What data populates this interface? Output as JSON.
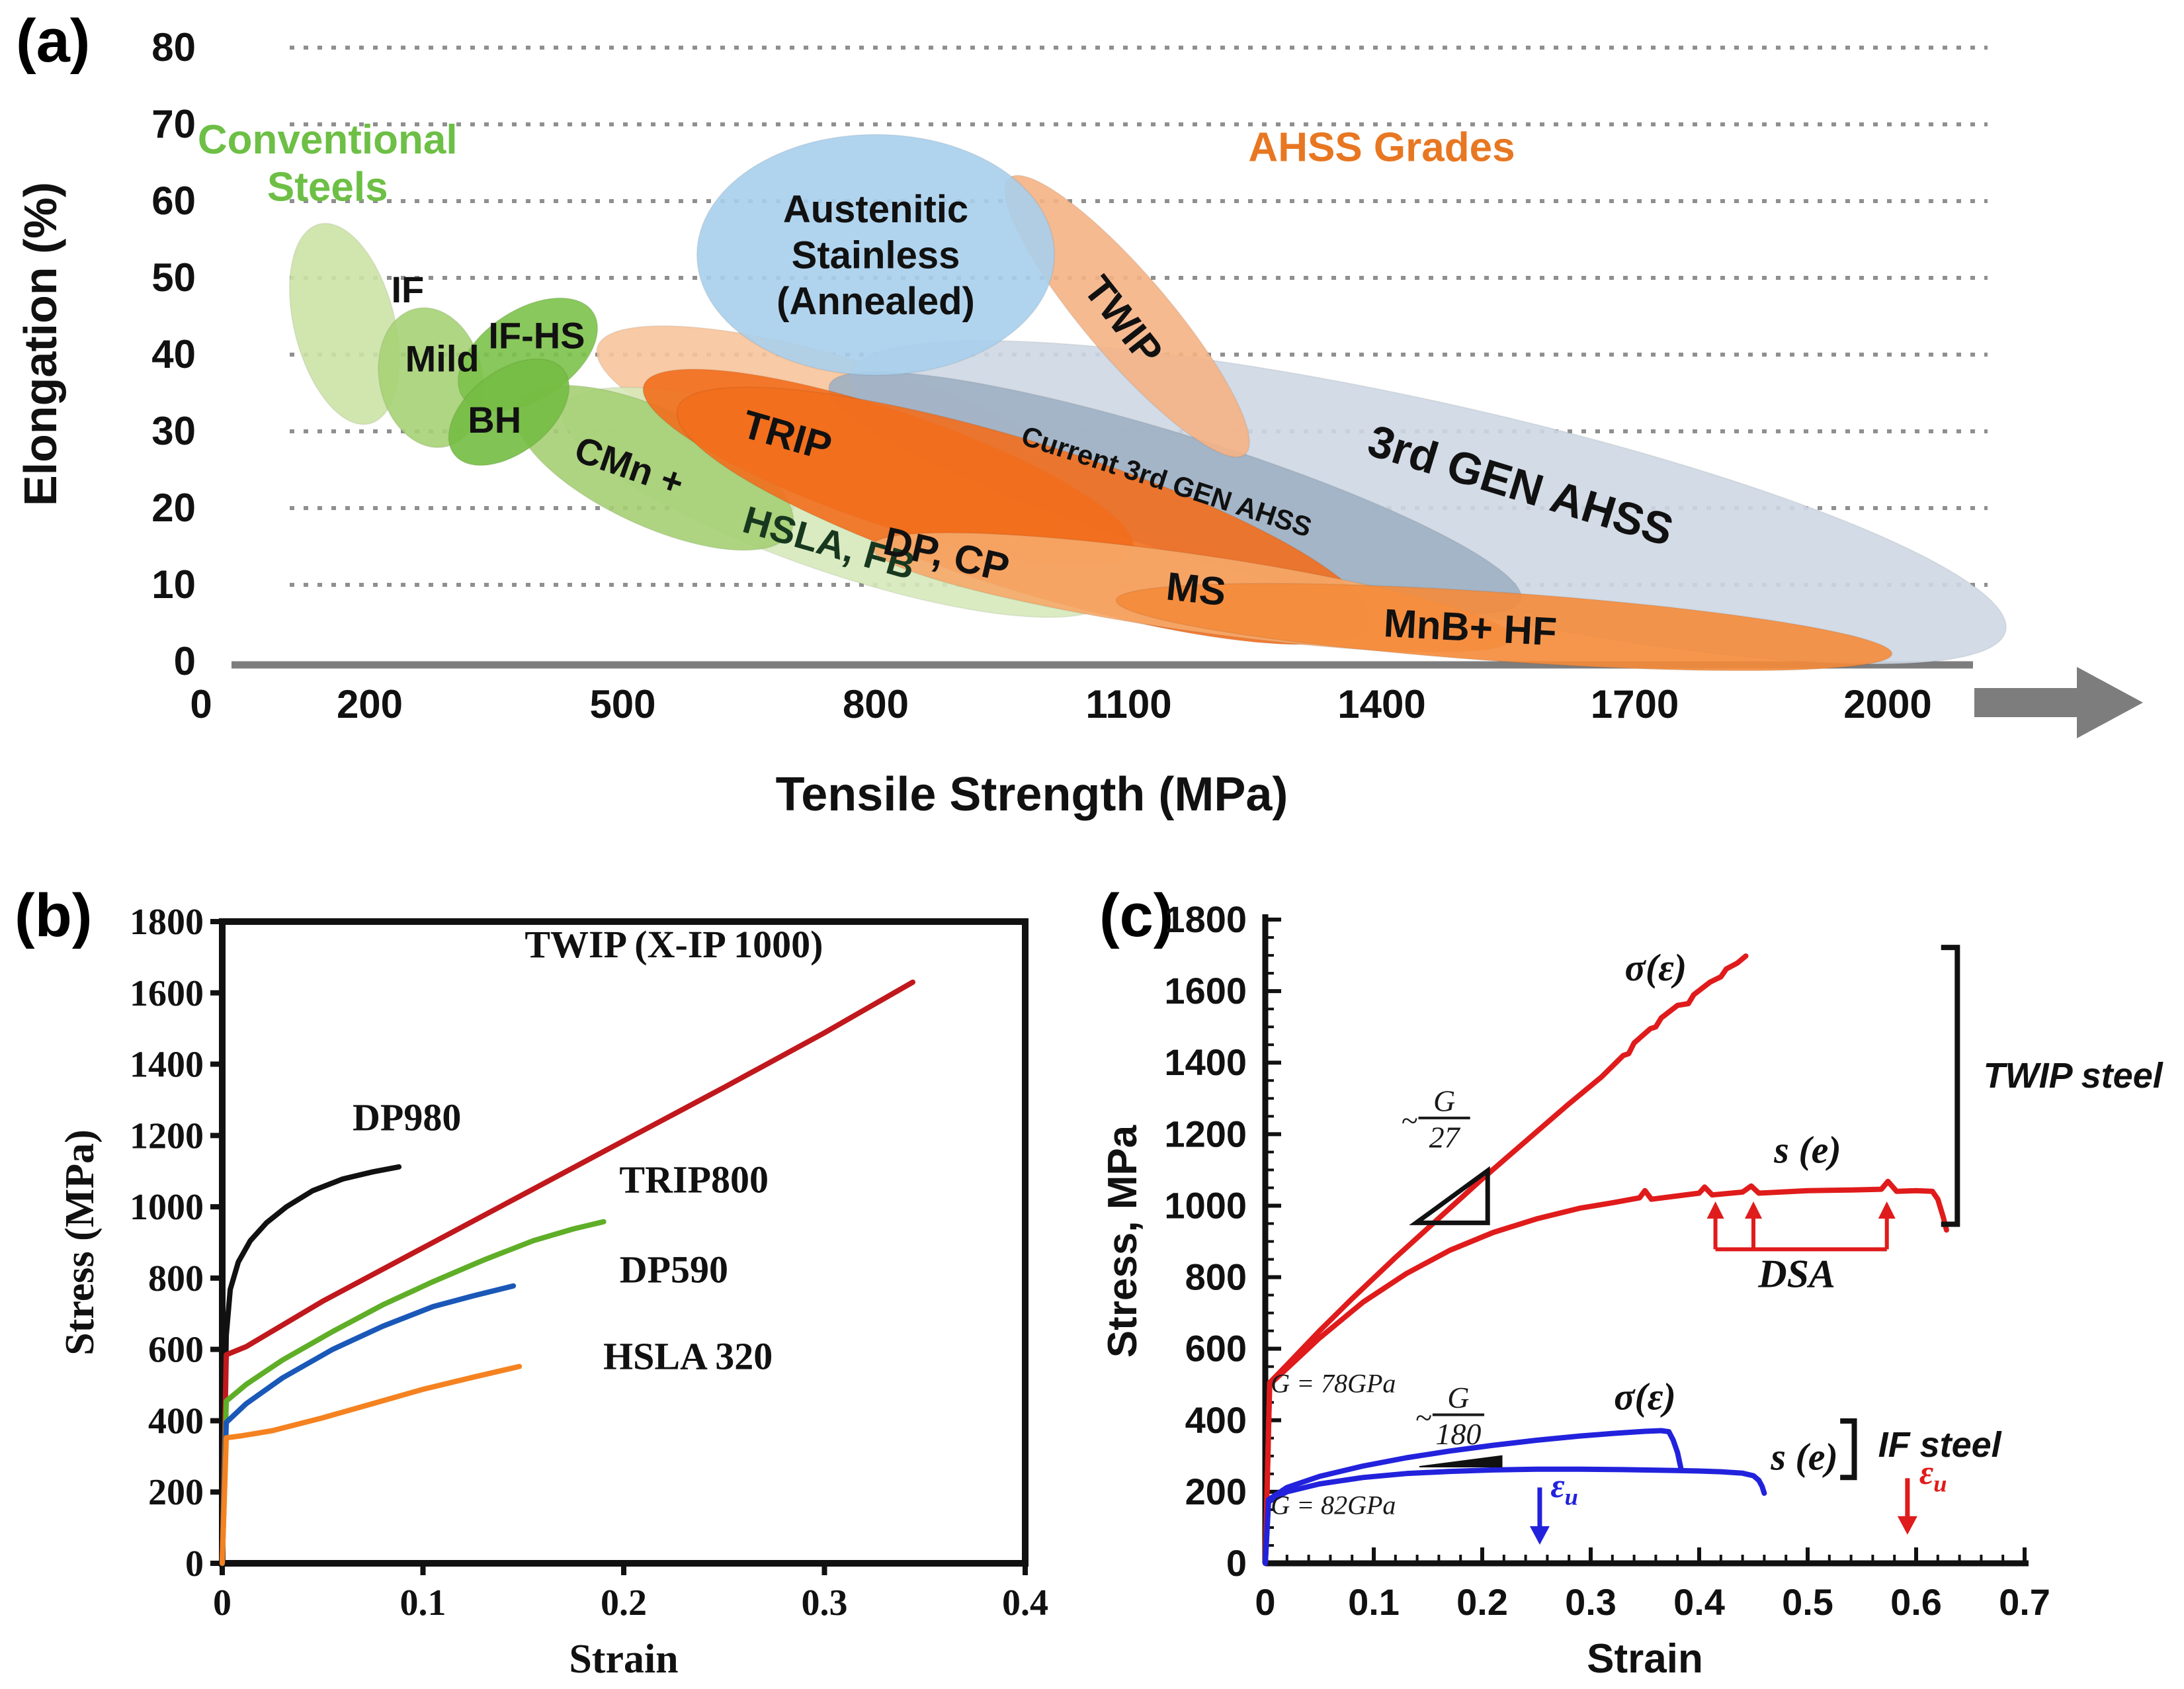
{
  "panel_tags": {
    "a": "(a)",
    "b": "(b)",
    "c": "(c)"
  },
  "chart_data": [
    {
      "id": "a",
      "type": "area",
      "tag": "(a)",
      "xlabel": "Tensile Strength (MPa)",
      "ylabel": "Elongation (%)",
      "xlim": [
        0,
        2100
      ],
      "ylim": [
        0,
        80
      ],
      "grid": "horizontal dotted",
      "x_ticks": [
        "0",
        "200",
        "500",
        "800",
        "1100",
        "1400",
        "1700",
        "2000"
      ],
      "x_tick_values": [
        0,
        200,
        500,
        800,
        1100,
        1400,
        1700,
        2000
      ],
      "y_ticks": [
        "0",
        "10",
        "20",
        "30",
        "40",
        "50",
        "60",
        "70",
        "80"
      ],
      "y_tick_values": [
        0,
        10,
        20,
        30,
        40,
        50,
        60,
        70,
        80
      ],
      "axis_color": "#7d7d7d",
      "group_labels": [
        {
          "lines": [
            "Conventional",
            "Steels"
          ],
          "x": 150,
          "y": 66.2,
          "size": 62,
          "color": "#6dbf45"
        },
        {
          "lines": [
            "AHSS Grades"
          ],
          "x": 1400,
          "y": 65.2,
          "size": 62,
          "color": "#e87722"
        }
      ],
      "regions": [
        {
          "label": "",
          "key": "trip-outer",
          "x1": 470,
          "y1": 41,
          "x2": 1060,
          "y2": 21,
          "minor": 96,
          "color": "#f7c49b"
        },
        {
          "label": "3rd GEN AHSS",
          "x1": 770,
          "y1": 37.5,
          "x2": 2140,
          "y2": 4,
          "minor": 152,
          "color": "#cdd7e3",
          "lx": 1565,
          "ly": 23,
          "lrot": 17,
          "lsize": 68
        },
        {
          "label": "Current 3rd GEN AHSS",
          "x1": 745,
          "y1": 36,
          "x2": 1565,
          "y2": 8,
          "minor": 88,
          "color": "#9fb0c3",
          "lx": 1145,
          "ly": 23.5,
          "lrot": 18,
          "lsize": 42,
          "lweight": "600"
        },
        {
          "label": "HSLA, FB",
          "x1": 430,
          "y1": 33,
          "x2": 1080,
          "y2": 8.5,
          "minor": 106,
          "color": "#d6e9ba",
          "lx": 745,
          "ly": 15.5,
          "lrot": 16,
          "lsize": 58,
          "lcolor": "#17381f"
        },
        {
          "label": "CMn +",
          "x1": 375,
          "y1": 33.5,
          "x2": 700,
          "y2": 17,
          "minor": 88,
          "color": "#a5cf74",
          "lx": 508,
          "ly": 25.5,
          "lrot": 19,
          "lsize": 56
        },
        {
          "label": "IF",
          "x1": 140,
          "y1": 57,
          "x2": 200,
          "y2": 31,
          "minor": 76,
          "color": "#cce3a6",
          "lx": 245,
          "ly": 48.5,
          "lsize": 56
        },
        {
          "label": "Mild",
          "x1": 255,
          "y1": 46,
          "x2": 290,
          "y2": 28,
          "minor": 78,
          "color": "#a6d276",
          "lx": 286,
          "ly": 39.5,
          "lsize": 56
        },
        {
          "label": "IF-HS",
          "x1": 310,
          "y1": 34.5,
          "x2": 465,
          "y2": 45.5,
          "minor": 68,
          "color": "#7cc24a",
          "lx": 398,
          "ly": 42.5,
          "lsize": 56
        },
        {
          "label": "BH",
          "x1": 300,
          "y1": 27,
          "x2": 430,
          "y2": 38,
          "minor": 62,
          "color": "#74bd43",
          "lx": 348,
          "ly": 31.5,
          "lsize": 56
        },
        {
          "label": "TRIP",
          "x1": 525,
          "y1": 36,
          "x2": 1105,
          "y2": 14.5,
          "minor": 86,
          "color": "#f26e1d",
          "lx": 695,
          "ly": 29.5,
          "lrot": 16,
          "lsize": 60
        },
        {
          "label": "DP, CP",
          "x1": 565,
          "y1": 33,
          "x2": 1385,
          "y2": 5,
          "minor": 112,
          "color": "#f26e1d",
          "lx": 884,
          "ly": 14,
          "lrot": 13,
          "lsize": 60
        },
        {
          "label": "MS",
          "x1": 795,
          "y1": 15,
          "x2": 1555,
          "y2": 3,
          "minor": 58,
          "color": "#f6a869",
          "lx": 1180,
          "ly": 9.5,
          "lrot": 6,
          "lsize": 60
        },
        {
          "label": "MnB+ HF",
          "x1": 1085,
          "y1": 8,
          "x2": 2005,
          "y2": 1,
          "minor": 52,
          "color": "#f58b3a",
          "lx": 1505,
          "ly": 4.5,
          "lrot": 3,
          "lsize": 60
        },
        {
          "label": "TWIP",
          "x1": 958,
          "y1": 63,
          "x2": 1238,
          "y2": 27,
          "minor": 64,
          "color": "#f5b285",
          "lx": 1094,
          "ly": 44.5,
          "lrot": 52,
          "lsize": 60
        },
        {
          "label": "Austenitic Stainless (Annealed)",
          "lines": [
            "Austenitic",
            "Stainless",
            "(Annealed)"
          ],
          "x1": 588,
          "y1": 53,
          "x2": 1012,
          "y2": 53,
          "minor": 182,
          "color": "#a9cfec",
          "lx": 800,
          "ly": 53,
          "lsize": 58
        }
      ]
    },
    {
      "id": "b",
      "type": "line",
      "tag": "(b)",
      "xlabel": "Strain",
      "ylabel": "Stress (MPa)",
      "xlim": [
        0,
        0.4
      ],
      "ylim": [
        0,
        1800
      ],
      "frame": "box",
      "x_ticks": [
        "0",
        "0.1",
        "0.2",
        "0.3",
        "0.4"
      ],
      "x_tick_values": [
        0,
        0.1,
        0.2,
        0.3,
        0.4
      ],
      "y_tick_values": [
        0,
        200,
        400,
        600,
        800,
        1000,
        1200,
        1400,
        1600,
        1800
      ],
      "series": [
        {
          "name": "DP980",
          "color": "#111111",
          "x": [
            0,
            0.002,
            0.004,
            0.008,
            0.014,
            0.022,
            0.032,
            0.045,
            0.06,
            0.075,
            0.088
          ],
          "y": [
            0,
            640,
            768,
            845,
            905,
            955,
            1000,
            1045,
            1078,
            1098,
            1112
          ],
          "label_x": 0.092,
          "label_y": 1215
        },
        {
          "name": "TWIP (X-IP 1000)",
          "color": "#c0181c",
          "x": [
            0,
            0.002,
            0.012,
            0.05,
            0.1,
            0.15,
            0.2,
            0.25,
            0.3,
            0.344
          ],
          "y": [
            0,
            585,
            608,
            735,
            885,
            1035,
            1185,
            1335,
            1488,
            1630
          ],
          "label_x": 0.225,
          "label_y": 1700
        },
        {
          "name": "TRIP800",
          "color": "#5fae27",
          "x": [
            0,
            0.002,
            0.012,
            0.03,
            0.055,
            0.08,
            0.105,
            0.13,
            0.155,
            0.175,
            0.19
          ],
          "y": [
            0,
            455,
            502,
            570,
            650,
            725,
            790,
            850,
            905,
            938,
            958
          ],
          "label_x": 0.235,
          "label_y": 1040
        },
        {
          "name": "DP590",
          "color": "#1a58b8",
          "x": [
            0,
            0.002,
            0.012,
            0.03,
            0.055,
            0.08,
            0.105,
            0.125,
            0.145
          ],
          "y": [
            0,
            395,
            448,
            520,
            600,
            665,
            720,
            750,
            778
          ],
          "label_x": 0.225,
          "label_y": 788
        },
        {
          "name": "HSLA 320",
          "color": "#f58220",
          "x": [
            0,
            0.002,
            0.01,
            0.025,
            0.05,
            0.075,
            0.1,
            0.125,
            0.148
          ],
          "y": [
            0,
            352,
            358,
            372,
            408,
            448,
            488,
            522,
            552
          ],
          "label_x": 0.232,
          "label_y": 545
        }
      ]
    },
    {
      "id": "c",
      "type": "line",
      "tag": "(c)",
      "xlabel": "Strain",
      "ylabel": "Stress, MPa",
      "xlim": [
        0,
        0.7
      ],
      "ylim": [
        0,
        1800
      ],
      "frame": "axes",
      "x_ticks": [
        "0",
        "0.1",
        "0.2",
        "0.3",
        "0.4",
        "0.5",
        "0.6",
        "0.7"
      ],
      "x_tick_values": [
        0,
        0.1,
        0.2,
        0.3,
        0.4,
        0.5,
        0.6,
        0.7
      ],
      "x_minor_step": 0.02,
      "y_tick_values": [
        0,
        200,
        400,
        600,
        800,
        1000,
        1200,
        1400,
        1600,
        1800
      ],
      "y_minor_step": 50,
      "series": [
        {
          "name": "TWIP true stress sigma(eps)",
          "color": "#e01b1b",
          "x": [
            0,
            0.004,
            0.02,
            0.05,
            0.08,
            0.12,
            0.16,
            0.2,
            0.24,
            0.28,
            0.31,
            0.33,
            0.335,
            0.34,
            0.355,
            0.36,
            0.365,
            0.38,
            0.39,
            0.395,
            0.41,
            0.42,
            0.425,
            0.435,
            0.443
          ],
          "y": [
            0,
            505,
            555,
            650,
            740,
            855,
            965,
            1075,
            1180,
            1285,
            1360,
            1420,
            1425,
            1455,
            1495,
            1500,
            1525,
            1560,
            1565,
            1590,
            1625,
            1640,
            1662,
            1678,
            1698
          ]
        },
        {
          "name": "TWIP engineering stress s(e)",
          "color": "#e01b1b",
          "x": [
            0,
            0.004,
            0.02,
            0.05,
            0.09,
            0.13,
            0.17,
            0.21,
            0.25,
            0.29,
            0.32,
            0.345,
            0.35,
            0.356,
            0.4,
            0.405,
            0.412,
            0.44,
            0.448,
            0.455,
            0.5,
            0.54,
            0.568,
            0.574,
            0.582,
            0.6,
            0.615,
            0.62,
            0.625,
            0.628
          ],
          "y": [
            0,
            500,
            545,
            630,
            730,
            810,
            875,
            925,
            963,
            993,
            1008,
            1022,
            1042,
            1018,
            1035,
            1052,
            1030,
            1038,
            1055,
            1035,
            1042,
            1044,
            1046,
            1068,
            1040,
            1042,
            1040,
            1018,
            968,
            932
          ]
        },
        {
          "name": "IF true stress sigma(eps)",
          "color": "#2222dd",
          "x": [
            0,
            0.003,
            0.02,
            0.05,
            0.09,
            0.13,
            0.17,
            0.21,
            0.25,
            0.29,
            0.32,
            0.35,
            0.365,
            0.372,
            0.376,
            0.38,
            0.383
          ],
          "y": [
            0,
            178,
            212,
            243,
            272,
            295,
            314,
            330,
            344,
            356,
            363,
            369,
            371,
            368,
            345,
            310,
            268
          ]
        },
        {
          "name": "IF engineering stress s(e)",
          "color": "#2222dd",
          "x": [
            0,
            0.003,
            0.02,
            0.05,
            0.09,
            0.13,
            0.17,
            0.21,
            0.25,
            0.29,
            0.33,
            0.37,
            0.4,
            0.42,
            0.44,
            0.45,
            0.455,
            0.458,
            0.46
          ],
          "y": [
            0,
            172,
            200,
            222,
            240,
            251,
            257,
            261,
            263,
            263,
            262,
            260,
            258,
            256,
            252,
            245,
            232,
            215,
            196
          ]
        }
      ],
      "texts": [
        {
          "t": "G = 78GPa",
          "x": 0.005,
          "y": 478,
          "size": 40,
          "font": "serif",
          "italic": true,
          "anchor": "start",
          "color": "#1a1a1a"
        },
        {
          "t": "G = 82GPa",
          "x": 0.005,
          "y": 138,
          "size": 40,
          "font": "serif",
          "italic": true,
          "anchor": "start",
          "color": "#1a1a1a"
        },
        {
          "t": "σ(ε)",
          "x": 0.36,
          "y": 1630,
          "size": 58,
          "font": "serif",
          "italic": true,
          "bold": true,
          "anchor": "middle",
          "color": "#111111"
        },
        {
          "t": "s (e)",
          "x": 0.5,
          "y": 1120,
          "size": 58,
          "font": "serif",
          "italic": true,
          "bold": true,
          "anchor": "middle",
          "color": "#111111"
        },
        {
          "t": "DSA",
          "x": 0.49,
          "y": 772,
          "size": 60,
          "font": "serif",
          "italic": true,
          "bold": true,
          "anchor": "middle",
          "color": "#111111"
        },
        {
          "t": "σ(ε)",
          "x": 0.35,
          "y": 430,
          "size": 58,
          "font": "serif",
          "italic": true,
          "bold": true,
          "anchor": "middle",
          "color": "#111111"
        },
        {
          "t": "s (e)",
          "x": 0.497,
          "y": 262,
          "size": 58,
          "font": "serif",
          "italic": true,
          "bold": true,
          "anchor": "middle",
          "color": "#111111"
        },
        {
          "t": "TWIP steel",
          "x": 0.662,
          "y": 1330,
          "size": 54,
          "font": "sans",
          "italic": true,
          "bold": true,
          "anchor": "start",
          "color": "#111111"
        },
        {
          "t": "IF steel",
          "x": 0.565,
          "y": 298,
          "size": 54,
          "font": "sans",
          "italic": true,
          "bold": true,
          "anchor": "start",
          "color": "#111111"
        },
        {
          "t": "ε",
          "sub": "u",
          "x": 0.263,
          "y": 185,
          "size": 52,
          "font": "serif",
          "italic": true,
          "bold": true,
          "anchor": "start",
          "color": "#2222dd"
        },
        {
          "t": "ε",
          "sub": "u",
          "x": 0.603,
          "y": 222,
          "size": 52,
          "font": "serif",
          "italic": true,
          "bold": true,
          "anchor": "start",
          "color": "#e01b1b"
        }
      ],
      "fractions": [
        {
          "prefix": "~",
          "top": "G",
          "bottom": "27",
          "x": 0.165,
          "y": 1235,
          "size": 46,
          "color": "#1a1a1a"
        },
        {
          "prefix": "~",
          "top": "G",
          "bottom": "180",
          "x": 0.178,
          "y": 405,
          "size": 46,
          "color": "#1a1a1a"
        }
      ],
      "triangles": [
        {
          "pts": [
            [
              0.139,
              952
            ],
            [
              0.205,
              952
            ],
            [
              0.205,
              1098
            ]
          ],
          "fill": "none",
          "stroke": "#111111",
          "w": 7
        },
        {
          "pts": [
            [
              0.142,
              270
            ],
            [
              0.218,
              270
            ],
            [
              0.218,
              300
            ]
          ],
          "fill": "#111111",
          "stroke": "#111111",
          "w": 2
        }
      ],
      "down_arrows": [
        {
          "x": 0.253,
          "y1": 212,
          "y2": 52,
          "color": "#2222dd"
        },
        {
          "x": 0.592,
          "y1": 238,
          "y2": 80,
          "color": "#e01b1b"
        }
      ],
      "dsa_arrows": {
        "xs": [
          0.415,
          0.45,
          0.573
        ],
        "ybase": 878,
        "ytip": 1012,
        "color": "#e01b1b"
      },
      "brackets": [
        {
          "x": 0.638,
          "y1": 948,
          "y2": 1722,
          "foot": 0.015
        },
        {
          "x": 0.543,
          "y1": 240,
          "y2": 398,
          "foot": 0.013
        }
      ]
    }
  ]
}
